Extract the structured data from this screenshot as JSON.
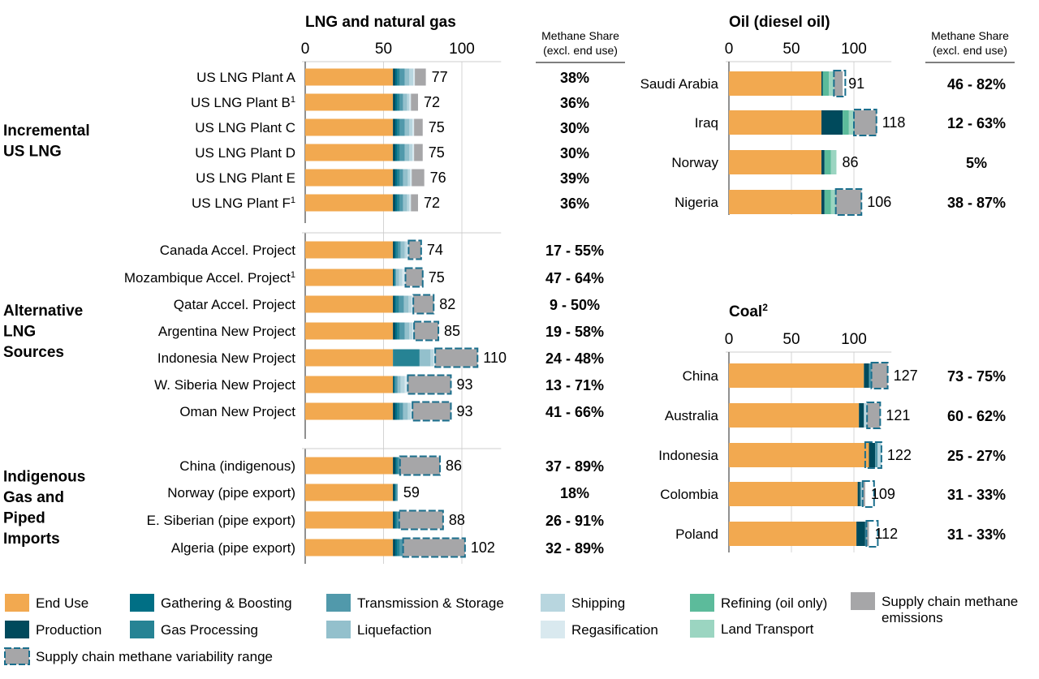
{
  "chart_data": [
    {
      "type": "bar",
      "stacked": true,
      "orientation": "horizontal",
      "title": "LNG and natural gas",
      "x_ticks": [
        "0",
        "50",
        "100"
      ],
      "xlim": [
        0,
        125
      ],
      "share_header": [
        "Methane Share",
        "(excl. end use)"
      ],
      "groups": [
        {
          "label": [
            "Incremental",
            "US LNG"
          ],
          "first": 0,
          "last": 5
        },
        {
          "label": [
            "Alternative",
            "LNG",
            "Sources"
          ],
          "first": 6,
          "last": 12
        },
        {
          "label": [
            "Indigenous",
            "Gas and",
            "Piped",
            "Imports"
          ],
          "first": 13,
          "last": 16
        }
      ],
      "categories": [
        {
          "name": "US LNG Plant A",
          "sup": "",
          "total": "77",
          "share": "38%",
          "segments": {
            "end_use": 56,
            "production": 1.5,
            "gathering": 1.5,
            "processing": 1.5,
            "transmission": 3,
            "liquefaction": 3,
            "shipping": 2.5,
            "regasification": 1,
            "supply_chain": 7
          }
        },
        {
          "name": "US LNG Plant B",
          "sup": "1",
          "total": "72",
          "share": "36%",
          "segments": {
            "end_use": 56,
            "production": 1.5,
            "gathering": 1.5,
            "processing": 1.5,
            "transmission": 2,
            "liquefaction": 2.5,
            "shipping": 1.5,
            "regasification": 1,
            "supply_chain": 4.5
          }
        },
        {
          "name": "US LNG Plant C",
          "sup": "",
          "total": "75",
          "share": "30%",
          "segments": {
            "end_use": 56,
            "production": 1.5,
            "gathering": 1.5,
            "processing": 1.5,
            "transmission": 3,
            "liquefaction": 3,
            "shipping": 2,
            "regasification": 1,
            "supply_chain": 5.5
          }
        },
        {
          "name": "US LNG Plant D",
          "sup": "",
          "total": "75",
          "share": "30%",
          "segments": {
            "end_use": 56,
            "production": 1.5,
            "gathering": 1.5,
            "processing": 1.5,
            "transmission": 3,
            "liquefaction": 3,
            "shipping": 2,
            "regasification": 1,
            "supply_chain": 5.5
          }
        },
        {
          "name": "US LNG Plant E",
          "sup": "",
          "total": "76",
          "share": "39%",
          "segments": {
            "end_use": 56,
            "production": 1.5,
            "gathering": 1.5,
            "processing": 1.5,
            "transmission": 2,
            "liquefaction": 3,
            "shipping": 1.5,
            "regasification": 1,
            "supply_chain": 8
          }
        },
        {
          "name": "US LNG Plant F",
          "sup": "1",
          "total": "72",
          "share": "36%",
          "segments": {
            "end_use": 56,
            "production": 1.5,
            "gathering": 1.5,
            "processing": 1.5,
            "transmission": 2,
            "liquefaction": 2.5,
            "shipping": 1.5,
            "regasification": 1,
            "supply_chain": 4.5
          }
        },
        {
          "name": "Canada Accel. Project",
          "sup": "",
          "total": "74",
          "share": "17 - 55%",
          "segments": {
            "end_use": 56,
            "production": 1,
            "gathering": 1,
            "processing": 1.5,
            "transmission": 1.5,
            "liquefaction": 2.5,
            "shipping": 1.5,
            "regasification": 1,
            "supply_chain": 8
          },
          "variability": true
        },
        {
          "name": "Mozambique Accel. Project",
          "sup": "1",
          "total": "75",
          "share": "47 - 64%",
          "segments": {
            "end_use": 56,
            "production": 0.5,
            "gathering": 0.5,
            "processing": 0.5,
            "transmission": 0.5,
            "liquefaction": 2,
            "shipping": 2,
            "regasification": 2,
            "supply_chain": 11
          },
          "variability": true
        },
        {
          "name": "Qatar Accel. Project",
          "sup": "",
          "total": "82",
          "share": "9 - 50%",
          "segments": {
            "end_use": 56,
            "production": 1,
            "gathering": 1,
            "processing": 2,
            "transmission": 3,
            "liquefaction": 3,
            "shipping": 2,
            "regasification": 1,
            "supply_chain": 13
          },
          "variability": true
        },
        {
          "name": "Argentina New Project",
          "sup": "",
          "total": "85",
          "share": "19 - 58%",
          "segments": {
            "end_use": 56,
            "production": 1.5,
            "gathering": 1.5,
            "processing": 1.5,
            "transmission": 3,
            "liquefaction": 3,
            "shipping": 2,
            "regasification": 1,
            "supply_chain": 15.5
          },
          "variability": true
        },
        {
          "name": "Indonesia New Project",
          "sup": "",
          "total": "110",
          "share": "24 - 48%",
          "segments": {
            "end_use": 56,
            "production": 0,
            "gathering": 0,
            "processing": 17,
            "transmission": 0,
            "liquefaction": 7,
            "shipping": 2,
            "regasification": 1,
            "supply_chain": 27
          },
          "variability": true
        },
        {
          "name": "W. Siberia New Project",
          "sup": "",
          "total": "93",
          "share": "13 - 71%",
          "segments": {
            "end_use": 56,
            "production": 0.5,
            "gathering": 0.5,
            "processing": 0.5,
            "transmission": 1.5,
            "liquefaction": 2,
            "shipping": 2.5,
            "regasification": 2,
            "supply_chain": 27.5
          },
          "variability": true
        },
        {
          "name": "Oman New Project",
          "sup": "",
          "total": "93",
          "share": "41 - 66%",
          "segments": {
            "end_use": 56,
            "production": 1.5,
            "gathering": 1.5,
            "processing": 1.5,
            "transmission": 2,
            "liquefaction": 3,
            "shipping": 2,
            "regasification": 1,
            "supply_chain": 24.5
          },
          "variability": true
        },
        {
          "name": "China (indigenous)",
          "sup": "",
          "total": "86",
          "share": "37 - 89%",
          "segments": {
            "end_use": 56,
            "production": 1.5,
            "gathering": 1,
            "processing": 1,
            "transmission": 1,
            "liquefaction": 0,
            "shipping": 0,
            "regasification": 0,
            "supply_chain": 25.5
          },
          "variability": true
        },
        {
          "name": "Norway (pipe export)",
          "sup": "",
          "total": "59",
          "share": "18%",
          "segments": {
            "end_use": 56,
            "production": 1,
            "gathering": 0.5,
            "processing": 0.5,
            "transmission": 1,
            "liquefaction": 0,
            "shipping": 0,
            "regasification": 0,
            "supply_chain": 0
          }
        },
        {
          "name": "E. Siberian (pipe export)",
          "sup": "",
          "total": "88",
          "share": "26 - 91%",
          "segments": {
            "end_use": 56,
            "production": 1,
            "gathering": 1,
            "processing": 1,
            "transmission": 1,
            "liquefaction": 0,
            "shipping": 0,
            "regasification": 0,
            "supply_chain": 28
          },
          "variability": true
        },
        {
          "name": "Algeria (pipe export)",
          "sup": "",
          "total": "102",
          "share": "32 - 89%",
          "segments": {
            "end_use": 56,
            "production": 1.5,
            "gathering": 1.5,
            "processing": 1.5,
            "transmission": 2,
            "liquefaction": 0,
            "shipping": 0,
            "regasification": 0,
            "supply_chain": 39.5
          },
          "variability": true
        }
      ]
    },
    {
      "type": "bar",
      "stacked": true,
      "orientation": "horizontal",
      "title": "Oil (diesel oil)",
      "x_ticks": [
        "0",
        "50",
        "100"
      ],
      "xlim": [
        0,
        130
      ],
      "share_header": [
        "Methane Share",
        "(excl. end use)"
      ],
      "categories": [
        {
          "name": "Saudi Arabia",
          "total": "91",
          "share": "46 - 82%",
          "segments": {
            "end_use": 74,
            "production": 1,
            "refining": 5,
            "land_transport": 4,
            "supply_chain": 7
          },
          "variability": true
        },
        {
          "name": "Iraq",
          "total": "118",
          "share": "12 - 63%",
          "segments": {
            "end_use": 74,
            "production": 17,
            "refining": 5,
            "land_transport": 4,
            "supply_chain": 18
          },
          "variability": true
        },
        {
          "name": "Norway",
          "total": "86",
          "share": "5%",
          "segments": {
            "end_use": 74,
            "production": 2.5,
            "refining": 5,
            "land_transport": 4.5,
            "supply_chain": 0
          }
        },
        {
          "name": "Nigeria",
          "total": "106",
          "share": "38 - 87%",
          "segments": {
            "end_use": 74,
            "production": 2.5,
            "refining": 5,
            "land_transport": 4,
            "supply_chain": 20.5
          },
          "variability": true
        }
      ]
    },
    {
      "type": "bar",
      "stacked": true,
      "orientation": "horizontal",
      "title": "Coal",
      "title_sup": "2",
      "x_ticks": [
        "0",
        "50",
        "100"
      ],
      "xlim": [
        0,
        130
      ],
      "categories": [
        {
          "name": "China",
          "total": "127",
          "share": "73 - 75%",
          "segments": {
            "end_use": 108,
            "production": 4,
            "transmission": 2,
            "shipping": 0,
            "supply_chain": 13
          },
          "variability": true
        },
        {
          "name": "Australia",
          "total": "121",
          "share": "60 - 62%",
          "segments": {
            "end_use": 104,
            "production": 4,
            "transmission": 0,
            "shipping": 2.5,
            "supply_chain": 10.5
          },
          "variability": true
        },
        {
          "name": "Indonesia",
          "total": "122",
          "share": "25 - 27%",
          "segments": {
            "end_use": 112,
            "production": 5,
            "transmission": 2,
            "shipping": 3,
            "supply_chain": 0
          },
          "variability": true
        },
        {
          "name": "Colombia",
          "total": "109",
          "share": "31 - 33%",
          "segments": {
            "end_use": 103,
            "production": 2,
            "transmission": 1,
            "shipping": 1,
            "supply_chain": 2
          },
          "variability": true
        },
        {
          "name": "Poland",
          "total": "112",
          "share": "31 - 33%",
          "segments": {
            "end_use": 102,
            "production": 7,
            "transmission": 1,
            "shipping": 0,
            "supply_chain": 2
          },
          "variability": true
        }
      ]
    }
  ],
  "legend": [
    {
      "key": "end_use",
      "label": [
        "End Use"
      ],
      "color": "#f2a950"
    },
    {
      "key": "production",
      "label": [
        "Production"
      ],
      "color": "#004a5c"
    },
    {
      "key": "gathering",
      "label": [
        "Gathering & Boosting"
      ],
      "color": "#006f85"
    },
    {
      "key": "processing",
      "label": [
        "Gas Processing"
      ],
      "color": "#268394"
    },
    {
      "key": "transmission",
      "label": [
        "Transmission & Storage"
      ],
      "color": "#5199ab"
    },
    {
      "key": "liquefaction",
      "label": [
        "Liquefaction"
      ],
      "color": "#93c0cc"
    },
    {
      "key": "shipping",
      "label": [
        "Shipping"
      ],
      "color": "#b8d6df"
    },
    {
      "key": "regasification",
      "label": [
        "Regasification"
      ],
      "color": "#d9e9ef"
    },
    {
      "key": "refining",
      "label": [
        "Refining (oil only)"
      ],
      "color": "#5cbb9b"
    },
    {
      "key": "land_transport",
      "label": [
        "Land Transport"
      ],
      "color": "#9bd5c1"
    },
    {
      "key": "supply_chain",
      "label": [
        "Supply chain methane",
        "emissions"
      ],
      "color": "#a6a6a8"
    },
    {
      "key": "variability",
      "label": [
        "Supply chain methane variability range"
      ],
      "color": "#1b6f8d"
    }
  ]
}
